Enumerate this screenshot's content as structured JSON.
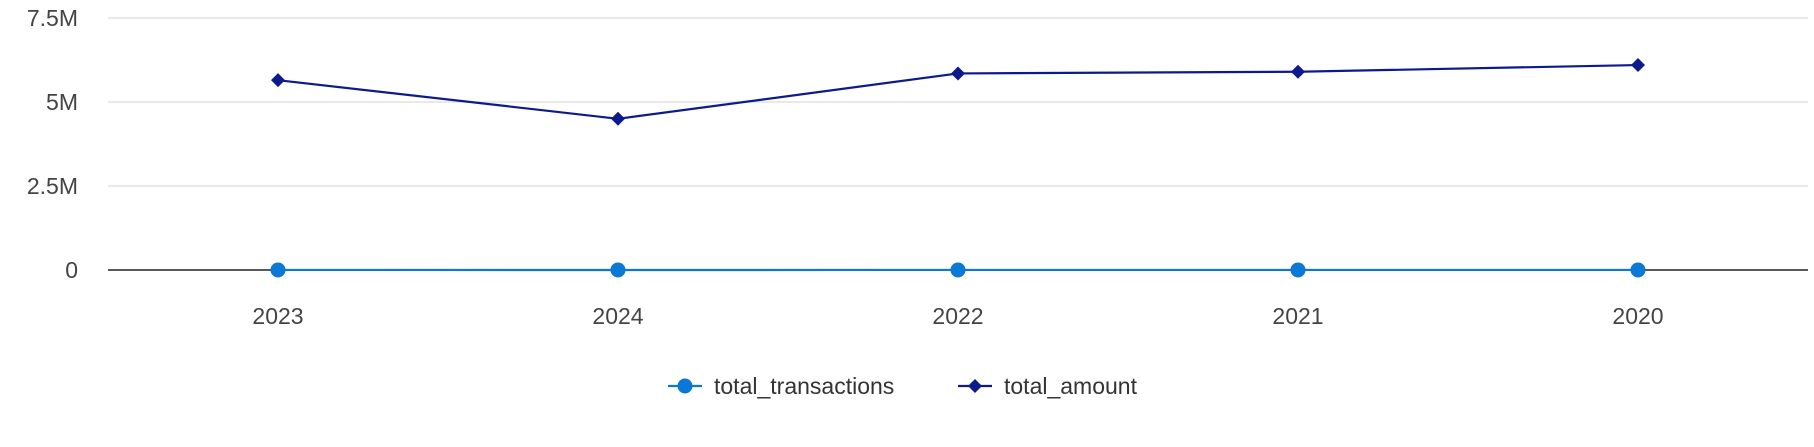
{
  "chart_data": {
    "type": "line",
    "categories": [
      "2023",
      "2024",
      "2022",
      "2021",
      "2020"
    ],
    "series": [
      {
        "name": "total_transactions",
        "values": [
          1200,
          1000,
          1250,
          1260,
          1300
        ],
        "color": "#0a78d4",
        "marker": "circle"
      },
      {
        "name": "total_amount",
        "values": [
          5650000,
          4500000,
          5850000,
          5900000,
          6100000
        ],
        "color": "#0d1a8c",
        "marker": "diamond"
      }
    ],
    "yticks": [
      {
        "value": 0,
        "label": "0"
      },
      {
        "value": 2500000,
        "label": "2.5M"
      },
      {
        "value": 5000000,
        "label": "5M"
      },
      {
        "value": 7500000,
        "label": "7.5M"
      }
    ],
    "ylim": [
      0,
      7500000
    ],
    "grid": true,
    "legend_position": "bottom-center",
    "title": "",
    "xlabel": "",
    "ylabel": ""
  }
}
